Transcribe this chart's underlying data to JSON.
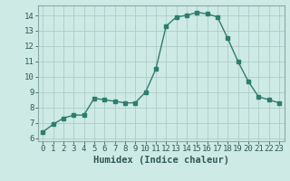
{
  "x": [
    0,
    1,
    2,
    3,
    4,
    5,
    6,
    7,
    8,
    9,
    10,
    11,
    12,
    13,
    14,
    15,
    16,
    17,
    18,
    19,
    20,
    21,
    22,
    23
  ],
  "y": [
    6.4,
    6.9,
    7.3,
    7.5,
    7.5,
    8.6,
    8.5,
    8.4,
    8.3,
    8.3,
    9.0,
    10.5,
    13.3,
    13.9,
    14.0,
    14.2,
    14.1,
    13.9,
    12.5,
    11.0,
    9.7,
    8.7,
    8.5,
    8.3
  ],
  "xlabel": "Humidex (Indice chaleur)",
  "xlim": [
    -0.5,
    23.5
  ],
  "ylim": [
    5.8,
    14.65
  ],
  "yticks": [
    6,
    7,
    8,
    9,
    10,
    11,
    12,
    13,
    14
  ],
  "xticks": [
    0,
    1,
    2,
    3,
    4,
    5,
    6,
    7,
    8,
    9,
    10,
    11,
    12,
    13,
    14,
    15,
    16,
    17,
    18,
    19,
    20,
    21,
    22,
    23
  ],
  "line_color": "#2e7d6e",
  "marker_color": "#2e7d6e",
  "bg_color": "#ceeae4",
  "grid_color": "#b0ccc8",
  "spine_color": "#8aabaa",
  "font_color": "#2e5a58",
  "font_family": "monospace",
  "tick_fontsize": 6.5,
  "xlabel_fontsize": 7.5
}
